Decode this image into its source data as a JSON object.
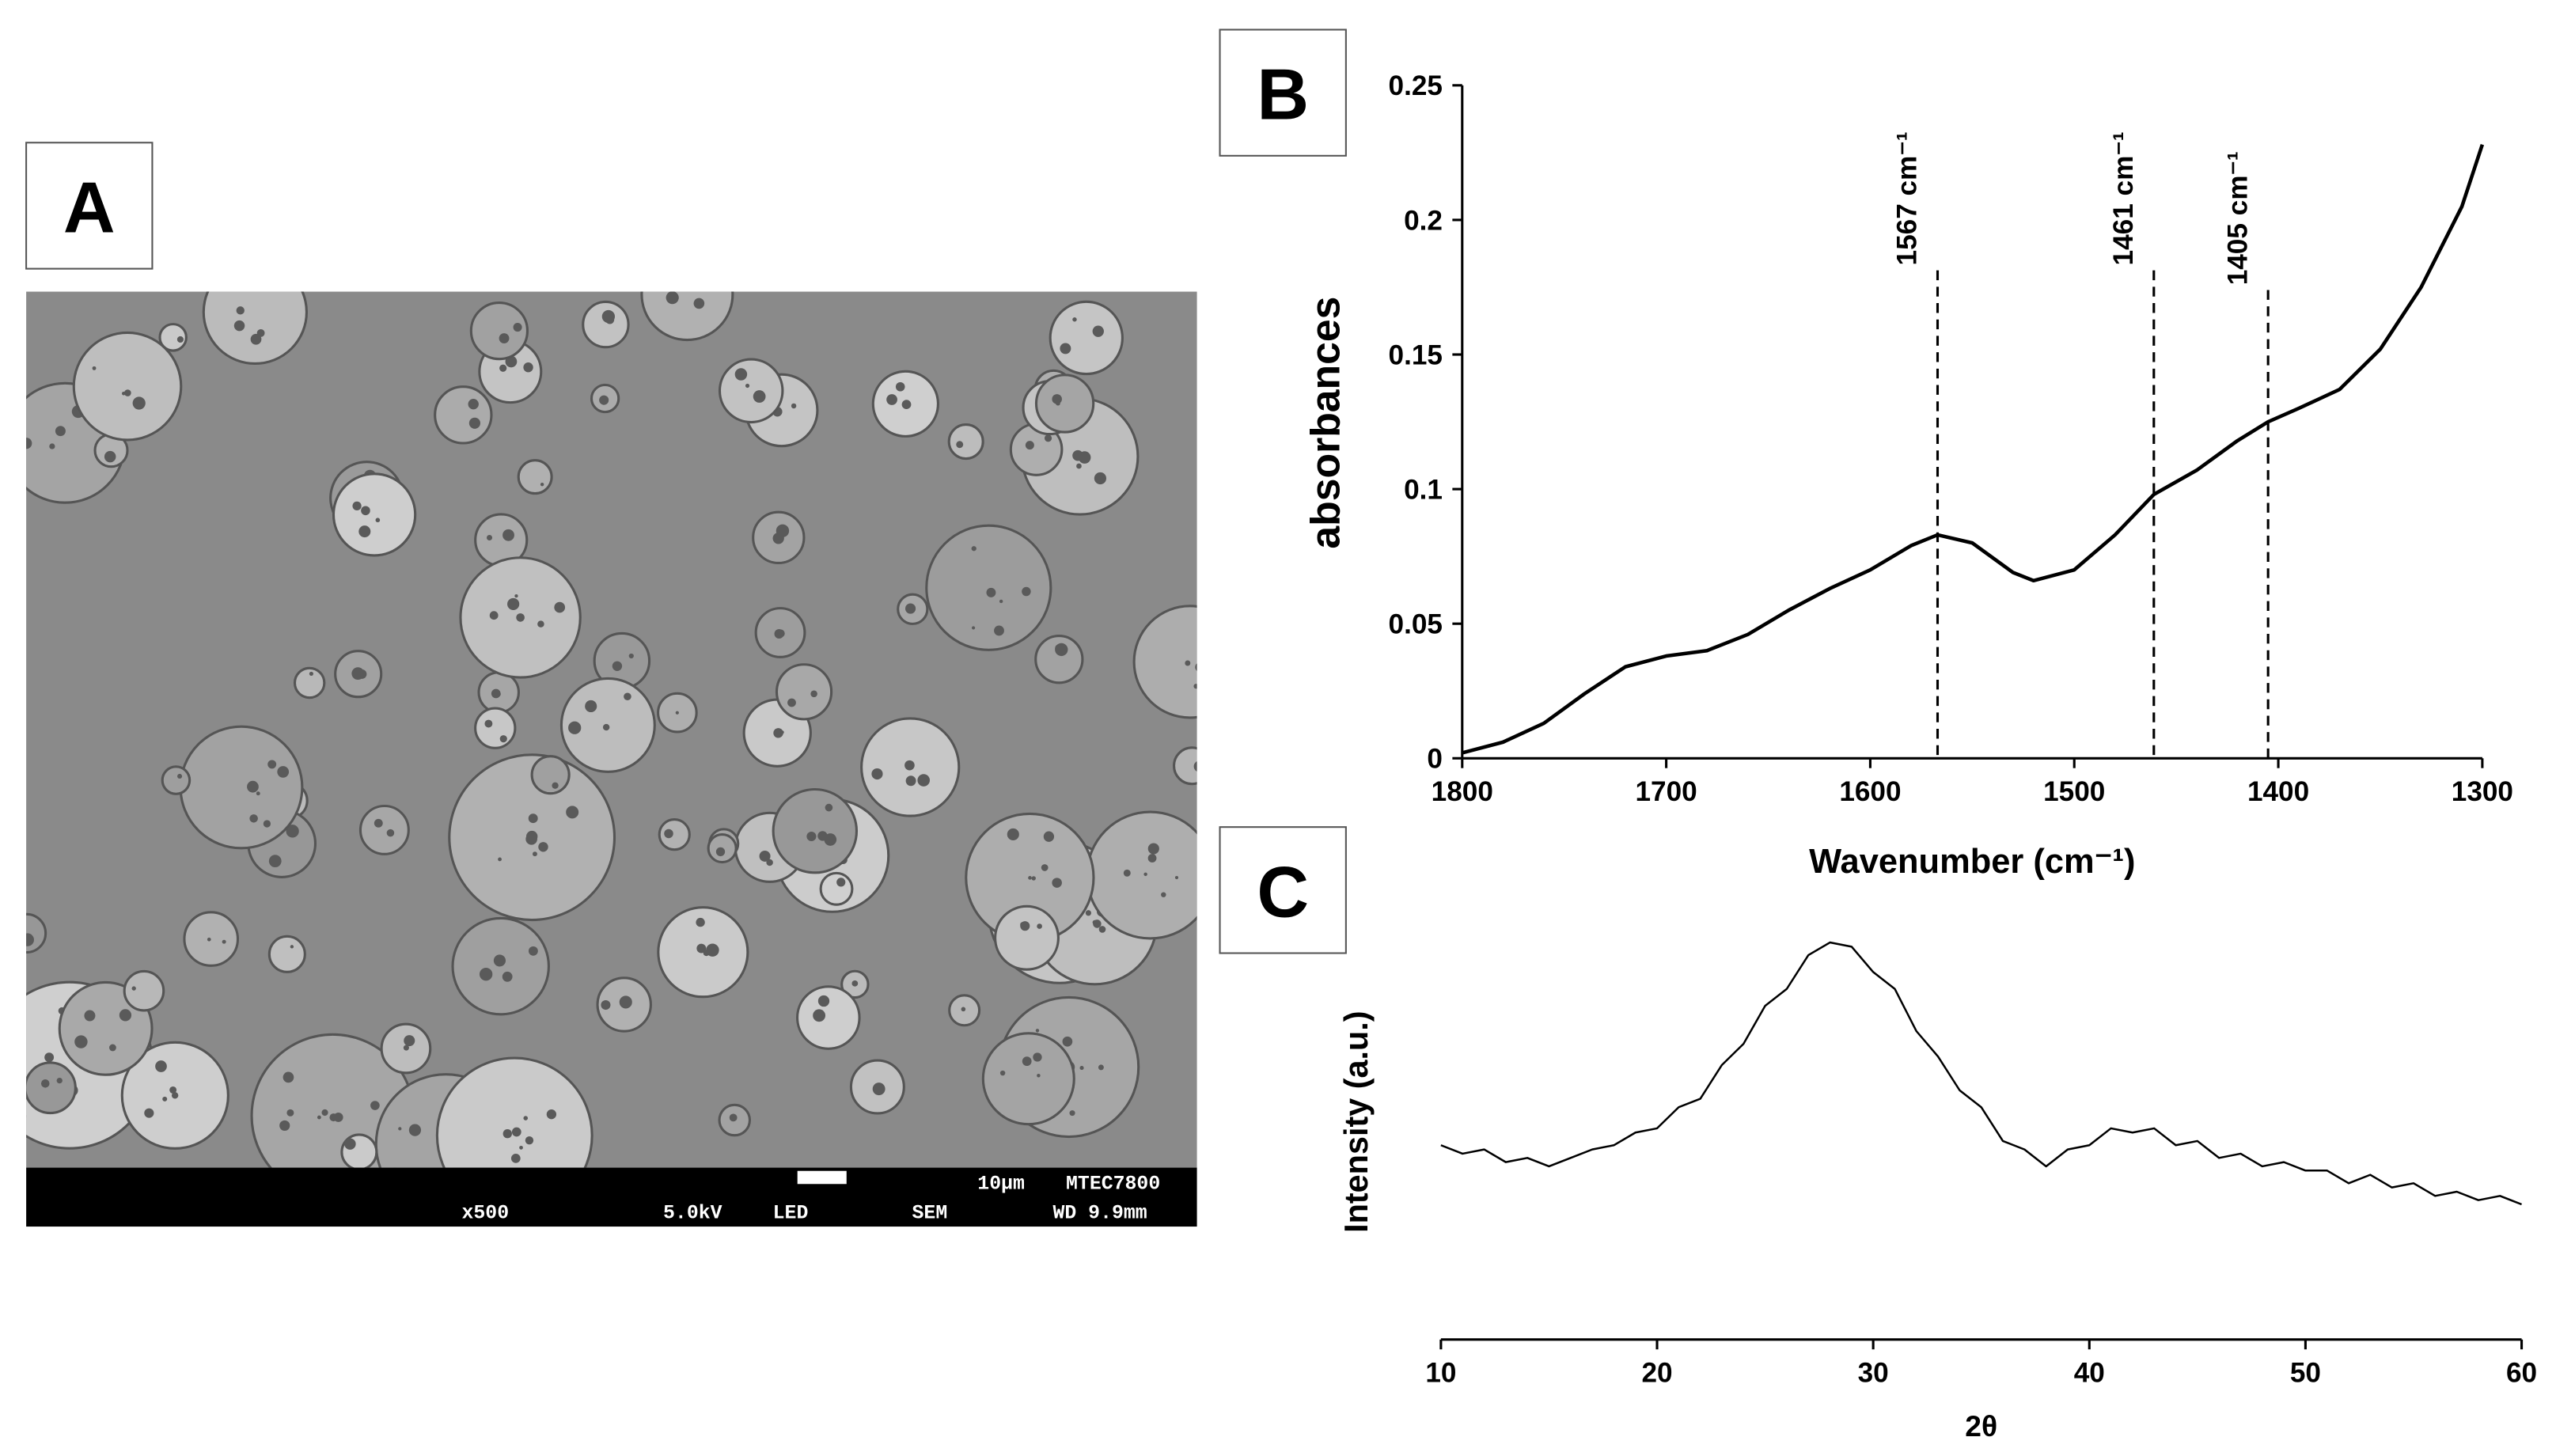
{
  "panel_labels": [
    "A",
    "B",
    "C"
  ],
  "sem_image": {
    "scale_bar": "10µm",
    "instrument": "MTEC7800",
    "magnification": "x500",
    "voltage": "5.0kV",
    "detector": "LED",
    "mode": "SEM",
    "working_distance": "WD 9.9mm"
  },
  "chart_data": [
    {
      "type": "line",
      "x_label": "Wavenumber (cm⁻¹)",
      "y_label": "absorbances",
      "color": "#000000",
      "x": [
        1800,
        1780,
        1760,
        1740,
        1720,
        1700,
        1680,
        1660,
        1640,
        1620,
        1600,
        1580,
        1567,
        1550,
        1530,
        1520,
        1500,
        1480,
        1461,
        1440,
        1420,
        1405,
        1390,
        1370,
        1350,
        1330,
        1310,
        1300
      ],
      "values": [
        0.002,
        0.006,
        0.013,
        0.024,
        0.034,
        0.038,
        0.04,
        0.046,
        0.055,
        0.063,
        0.07,
        0.079,
        0.083,
        0.08,
        0.069,
        0.066,
        0.07,
        0.083,
        0.098,
        0.107,
        0.118,
        0.125,
        0.13,
        0.137,
        0.152,
        0.175,
        0.205,
        0.228
      ],
      "xlim": [
        1800,
        1300
      ],
      "xticks": [
        1800,
        1700,
        1600,
        1500,
        1400,
        1300
      ],
      "ylim": [
        0,
        0.25
      ],
      "yticks": [
        0,
        0.05,
        0.1,
        0.15,
        0.2,
        0.25
      ],
      "annotations": [
        {
          "x": 1567,
          "label": "1567 cm⁻¹"
        },
        {
          "x": 1461,
          "label": "1461 cm⁻¹"
        },
        {
          "x": 1405,
          "label": "1405 cm⁻¹"
        }
      ]
    },
    {
      "type": "line",
      "x_label": "2θ",
      "y_label": "Intensity (a.u.)",
      "color": "#000000",
      "x": [
        10,
        11,
        12,
        13,
        14,
        15,
        16,
        17,
        18,
        19,
        20,
        21,
        22,
        23,
        24,
        25,
        26,
        27,
        28,
        29,
        30,
        31,
        32,
        33,
        34,
        35,
        36,
        37,
        38,
        39,
        40,
        41,
        42,
        43,
        44,
        45,
        46,
        47,
        48,
        49,
        50,
        51,
        52,
        53,
        54,
        55,
        56,
        57,
        58,
        59,
        60
      ],
      "values": [
        46,
        44,
        45,
        42,
        43,
        41,
        43,
        45,
        46,
        49,
        50,
        55,
        57,
        65,
        70,
        79,
        83,
        91,
        94,
        93,
        87,
        83,
        73,
        67,
        59,
        55,
        47,
        45,
        41,
        45,
        46,
        50,
        49,
        50,
        46,
        47,
        43,
        44,
        41,
        42,
        40,
        40,
        37,
        39,
        36,
        37,
        34,
        35,
        33,
        34,
        32
      ],
      "xlim": [
        10,
        60
      ],
      "xticks": [
        10,
        20,
        30,
        40,
        50,
        60
      ],
      "ylim": [
        0,
        100
      ]
    }
  ]
}
